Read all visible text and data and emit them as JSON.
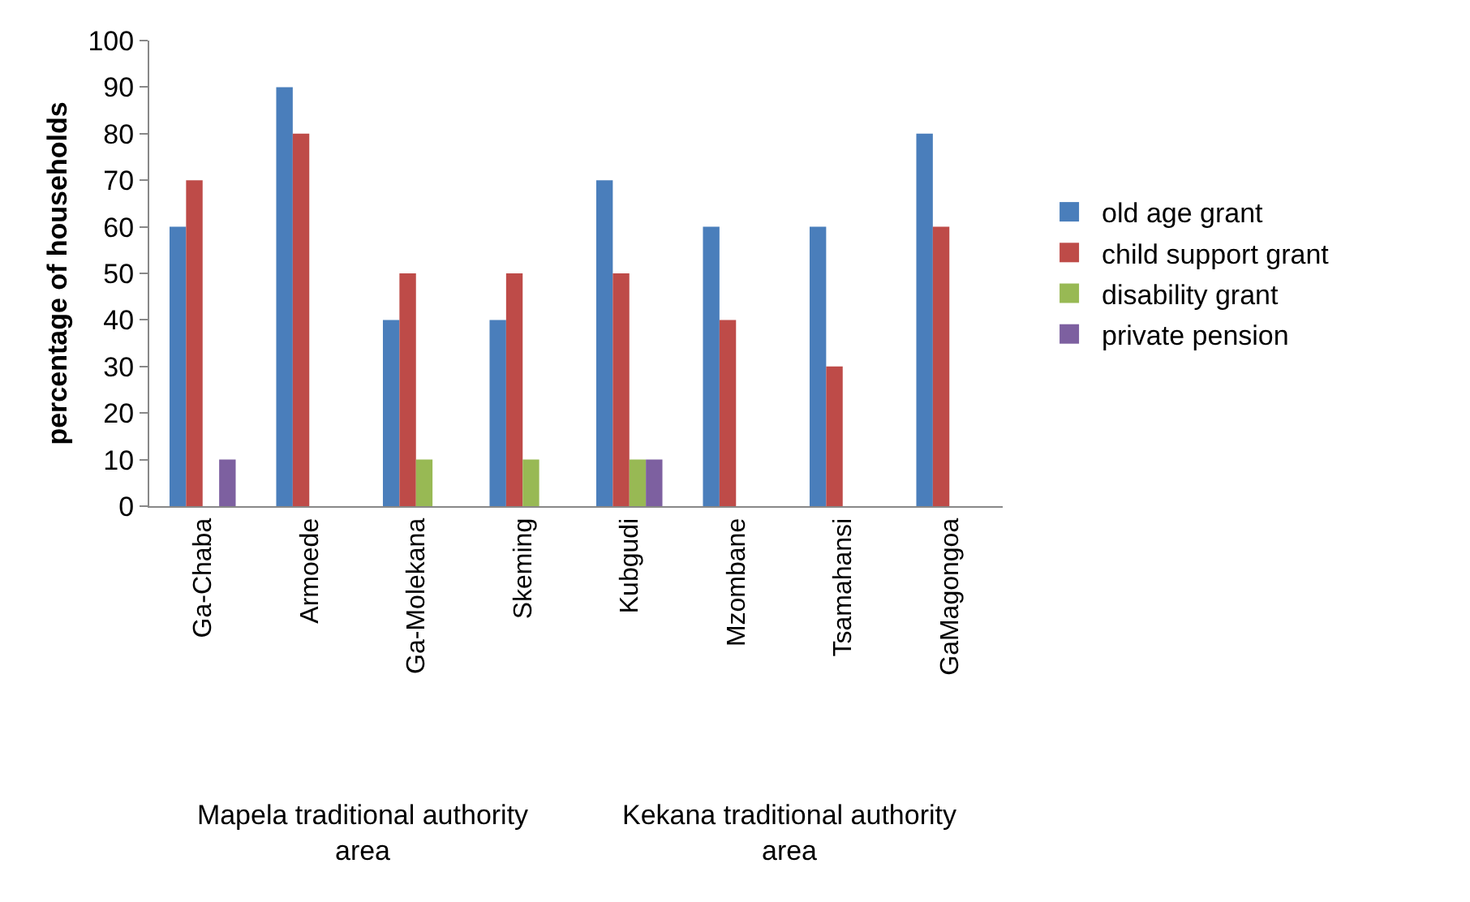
{
  "chart_data": {
    "type": "bar",
    "ylabel": "percentage of households",
    "categories": [
      "Ga-Chaba",
      "Armoede",
      "Ga-Molekana",
      "Skeming",
      "Kubgudi",
      "Mzombane",
      "Tsamahansi",
      "GaMagongoa"
    ],
    "series": [
      {
        "name": "old age grant",
        "color": "#4a7ebb",
        "values": [
          60,
          90,
          40,
          40,
          70,
          60,
          60,
          80
        ]
      },
      {
        "name": "child support grant",
        "color": "#be4b48",
        "values": [
          70,
          80,
          50,
          50,
          50,
          40,
          30,
          60
        ]
      },
      {
        "name": "disability grant",
        "color": "#98b954",
        "values": [
          0,
          0,
          10,
          10,
          10,
          0,
          0,
          0
        ]
      },
      {
        "name": "private pension",
        "color": "#7d60a0",
        "values": [
          10,
          0,
          0,
          0,
          10,
          0,
          0,
          0
        ]
      }
    ],
    "ylim": [
      0,
      100
    ],
    "yticks": [
      0,
      10,
      20,
      30,
      40,
      50,
      60,
      70,
      80,
      90,
      100
    ],
    "grid": false,
    "legend": "right",
    "annotations": [
      "Mapela traditional authority area",
      "Kekana traditional authority area"
    ]
  }
}
